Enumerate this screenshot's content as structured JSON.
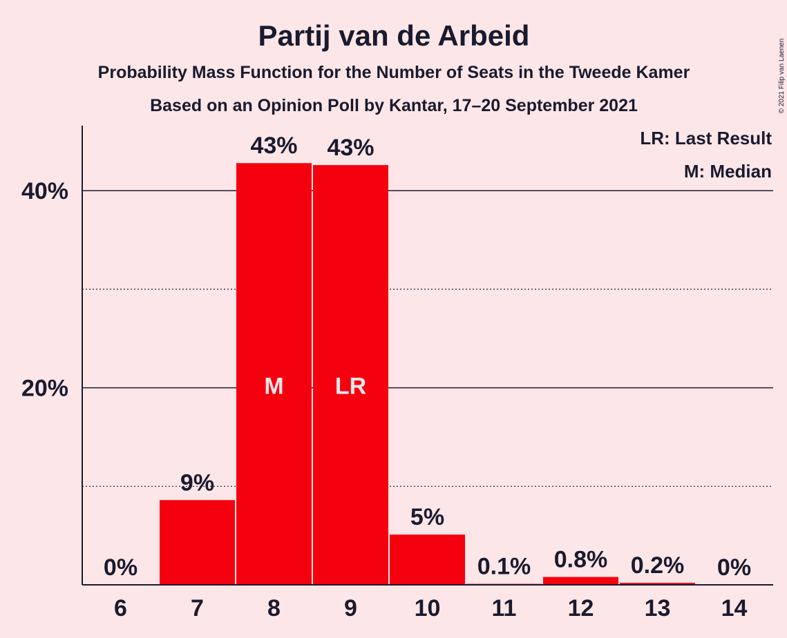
{
  "colors": {
    "bar": "#F5000F",
    "background": "#FCE6E8",
    "text": "#1a1a2e"
  },
  "chart_data": {
    "type": "bar",
    "title": "Partij van de Arbeid",
    "subtitle": "Probability Mass Function for the Number of Seats in the Tweede Kamer",
    "subtitle2": "Based on an Opinion Poll by Kantar, 17–20 September 2021",
    "xlabel": "",
    "ylabel": "",
    "categories": [
      "6",
      "7",
      "8",
      "9",
      "10",
      "11",
      "12",
      "13",
      "14"
    ],
    "values": [
      0,
      8.6,
      42.8,
      42.6,
      5.1,
      0.1,
      0.8,
      0.2,
      0
    ],
    "data_labels": [
      "0%",
      "9%",
      "43%",
      "43%",
      "5%",
      "0.1%",
      "0.8%",
      "0.2%",
      "0%"
    ],
    "bar_markers": [
      {
        "category": "8",
        "label": "M"
      },
      {
        "category": "9",
        "label": "LR"
      }
    ],
    "ylim": [
      0,
      46.6
    ],
    "yticks": [
      {
        "value": 20,
        "label": "20%",
        "major": true
      },
      {
        "value": 40,
        "label": "40%",
        "major": true
      }
    ],
    "minor_gridlines": [
      10,
      30
    ],
    "grid": true,
    "legend": {
      "placement": "top-right",
      "entries": [
        "LR: Last Result",
        "M: Median"
      ]
    },
    "copyright": "© 2021 Filip van Laenen"
  }
}
